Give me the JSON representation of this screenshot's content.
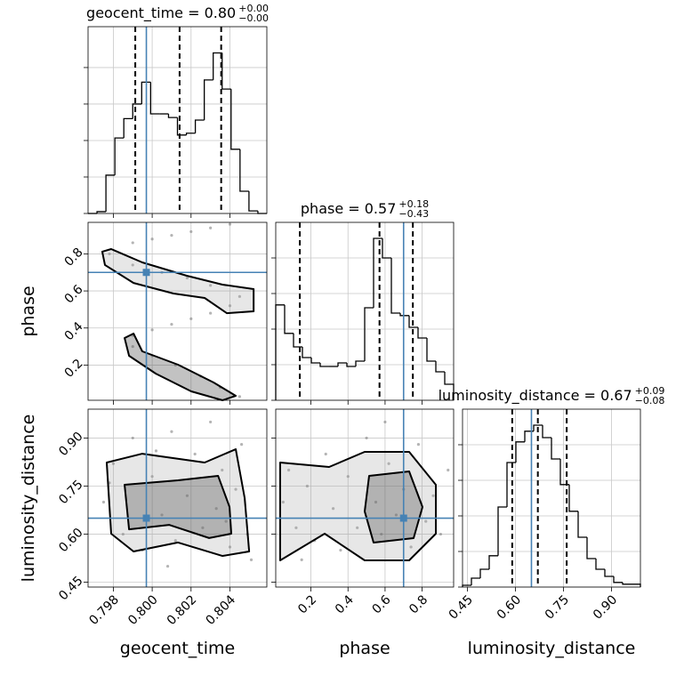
{
  "chart_data": {
    "type": "corner",
    "truth_color": "#4682b4",
    "grid": true,
    "parameters": [
      {
        "name": "geocent_time",
        "title": "geocent_time = 0.80",
        "title_plus": "+0.00",
        "title_minus": "−0.00",
        "truth": 0.7997,
        "quantiles": [
          0.79913,
          0.80141,
          0.80355
        ],
        "lim": [
          0.7967,
          0.8059
        ],
        "ticks": [
          0.798,
          {
            "value": 0.8,
            "label": "0.800"
          },
          0.802,
          0.804
        ],
        "bins": [
          0.7967,
          0.79716,
          0.79762,
          0.79808,
          0.79854,
          0.799,
          0.79946,
          0.79992,
          0.80038,
          0.80084,
          0.8013,
          0.80176,
          0.80222,
          0.80268,
          0.80314,
          0.8036,
          0.80406,
          0.80452,
          0.80498,
          0.80544,
          0.8059
        ],
        "counts": [
          0,
          0.05,
          1.05,
          2.07,
          2.6,
          3.0,
          3.6,
          2.73,
          2.73,
          2.63,
          2.15,
          2.2,
          2.56,
          3.66,
          4.4,
          3.41,
          1.76,
          0.61,
          0.07,
          0
        ],
        "hist_ylim": [
          0,
          5.12
        ],
        "hist_yticks": [
          0,
          1,
          2,
          3,
          4
        ]
      },
      {
        "name": "phase",
        "title": "phase = 0.57",
        "title_plus": "+0.18",
        "title_minus": "−0.43",
        "truth": 0.7,
        "quantiles": [
          0.14,
          0.57,
          0.75
        ],
        "lim": [
          0.01,
          0.97
        ],
        "ticks": [
          0.2,
          0.4,
          0.6,
          0.8
        ],
        "bins": [
          0.01,
          0.058,
          0.106,
          0.154,
          0.202,
          0.25,
          0.298,
          0.346,
          0.394,
          0.442,
          0.49,
          0.538,
          0.586,
          0.634,
          0.682,
          0.73,
          0.778,
          0.826,
          0.874,
          0.922,
          0.97
        ],
        "counts": [
          2.68,
          1.88,
          1.5,
          1.2,
          1.05,
          0.95,
          0.95,
          1.05,
          0.95,
          1.1,
          2.6,
          4.55,
          4.0,
          2.45,
          2.38,
          2.05,
          1.75,
          1.1,
          0.8,
          0.45
        ],
        "hist_ylim": [
          0,
          5
        ],
        "hist_yticks": [
          0,
          1,
          2,
          3,
          4
        ]
      },
      {
        "name": "luminosity_distance",
        "title": "luminosity_distance = 0.67",
        "title_plus": "+0.09",
        "title_minus": "−0.08",
        "truth": 0.65,
        "quantiles": [
          0.59,
          0.67,
          0.76
        ],
        "lim": [
          0.435,
          0.99
        ],
        "ticks": [
          0.45,
          {
            "value": 0.6,
            "label": "0.60"
          },
          0.75,
          {
            "value": 0.9,
            "label": "0.90"
          }
        ],
        "bins": [
          0.435,
          0.46275,
          0.4905,
          0.51825,
          0.546,
          0.57375,
          0.6015,
          0.62925,
          0.657,
          0.68475,
          0.7125,
          0.74025,
          0.768,
          0.79575,
          0.8235,
          0.85125,
          0.879,
          0.90675,
          0.9345,
          0.96225,
          0.99
        ],
        "counts": [
          0.05,
          0.25,
          0.5,
          0.88,
          2.25,
          3.5,
          4.08,
          4.38,
          4.55,
          4.2,
          3.6,
          2.88,
          2.13,
          1.4,
          0.8,
          0.5,
          0.3,
          0.13,
          0.08,
          0.08
        ],
        "hist_ylim": [
          0,
          5
        ],
        "hist_yticks": [
          0,
          1,
          2,
          3,
          4
        ]
      }
    ],
    "pairs": [
      {
        "points": {
          "x": [
            0.799,
            0.8,
            0.801,
            0.802,
            0.803,
            0.804,
            0.7978,
            0.799,
            0.8005,
            0.8018,
            0.803,
            0.8045,
            0.804,
            0.803,
            0.802,
            0.801,
            0.8,
            0.799,
            0.799,
            0.8,
            0.8012,
            0.8025,
            0.8035,
            0.8045
          ],
          "y": [
            0.86,
            0.88,
            0.9,
            0.92,
            0.94,
            0.96,
            0.8,
            0.74,
            0.7,
            0.67,
            0.63,
            0.57,
            0.52,
            0.48,
            0.45,
            0.42,
            0.39,
            0.36,
            0.3,
            0.25,
            0.2,
            0.14,
            0.08,
            0.03
          ]
        },
        "contours": [
          {
            "x": [
              0.79743,
              0.79789,
              0.79949,
              0.80178,
              0.80362,
              0.80522,
              0.80522,
              0.80384,
              0.8027,
              0.8011,
              0.79904,
              0.79757
            ],
            "y": [
              0.812,
              0.826,
              0.754,
              0.682,
              0.634,
              0.61,
              0.49,
              0.48,
              0.562,
              0.586,
              0.643,
              0.74
            ]
          },
          {
            "x": [
              0.79858,
              0.79904,
              0.79949,
              0.80133,
              0.80316,
              0.8043,
              0.80362,
              0.80201,
              0.80018,
              0.79881
            ],
            "y": [
              0.346,
              0.37,
              0.274,
              0.202,
              0.106,
              0.034,
              0.01,
              0.058,
              0.154,
              0.25
            ]
          }
        ]
      },
      {
        "points": {
          "x": [
            0.7975,
            0.798,
            0.7985,
            0.799,
            0.7995,
            0.8,
            0.8005,
            0.801,
            0.8012,
            0.8018,
            0.8022,
            0.8026,
            0.803,
            0.8033,
            0.8036,
            0.804,
            0.8043,
            0.8046,
            0.8049,
            0.8051,
            0.7978,
            0.8008,
            0.8038,
            0.8002
          ],
          "y": [
            0.7,
            0.82,
            0.6,
            0.9,
            0.55,
            0.78,
            0.66,
            0.92,
            0.58,
            0.72,
            0.85,
            0.62,
            0.95,
            0.68,
            0.8,
            0.56,
            0.74,
            0.88,
            0.6,
            0.52,
            0.76,
            0.5,
            0.64,
            0.86
          ]
        },
        "contours": [
          {
            "x": [
              0.79766,
              0.79949,
              0.8027,
              0.8043,
              0.80476,
              0.80499,
              0.80362,
              0.80133,
              0.79904,
              0.79789
            ],
            "y": [
              0.8235,
              0.851,
              0.8235,
              0.865,
              0.7125,
              0.546,
              0.532,
              0.574,
              0.546,
              0.6015
            ]
          },
          {
            "x": [
              0.79858,
              0.80133,
              0.80339,
              0.80398,
              0.80407,
              0.80293,
              0.80087,
              0.79881
            ],
            "y": [
              0.754,
              0.768,
              0.782,
              0.685,
              0.6015,
              0.588,
              0.629,
              0.615
            ]
          }
        ]
      },
      {
        "points": {
          "x": [
            0.05,
            0.08,
            0.12,
            0.18,
            0.22,
            0.28,
            0.32,
            0.36,
            0.4,
            0.45,
            0.5,
            0.55,
            0.58,
            0.62,
            0.66,
            0.7,
            0.74,
            0.78,
            0.82,
            0.86,
            0.9,
            0.94,
            0.15,
            0.6
          ],
          "y": [
            0.7,
            0.8,
            0.62,
            0.75,
            0.58,
            0.85,
            0.68,
            0.55,
            0.78,
            0.62,
            0.9,
            0.7,
            0.6,
            0.82,
            0.66,
            0.74,
            0.56,
            0.88,
            0.64,
            0.72,
            0.6,
            0.8,
            0.52,
            0.95
          ]
        },
        "contours": [
          {
            "x": [
              0.034,
              0.298,
              0.49,
              0.73,
              0.874,
              0.874,
              0.73,
              0.49,
              0.274,
              0.034
            ],
            "y": [
              0.8235,
              0.8096,
              0.8568,
              0.8568,
              0.754,
              0.6015,
              0.5183,
              0.5183,
              0.6015,
              0.5183
            ]
          },
          {
            "x": [
              0.514,
              0.73,
              0.802,
              0.754,
              0.538,
              0.49
            ],
            "y": [
              0.782,
              0.7958,
              0.6848,
              0.5877,
              0.5739,
              0.671
            ]
          }
        ]
      }
    ]
  }
}
